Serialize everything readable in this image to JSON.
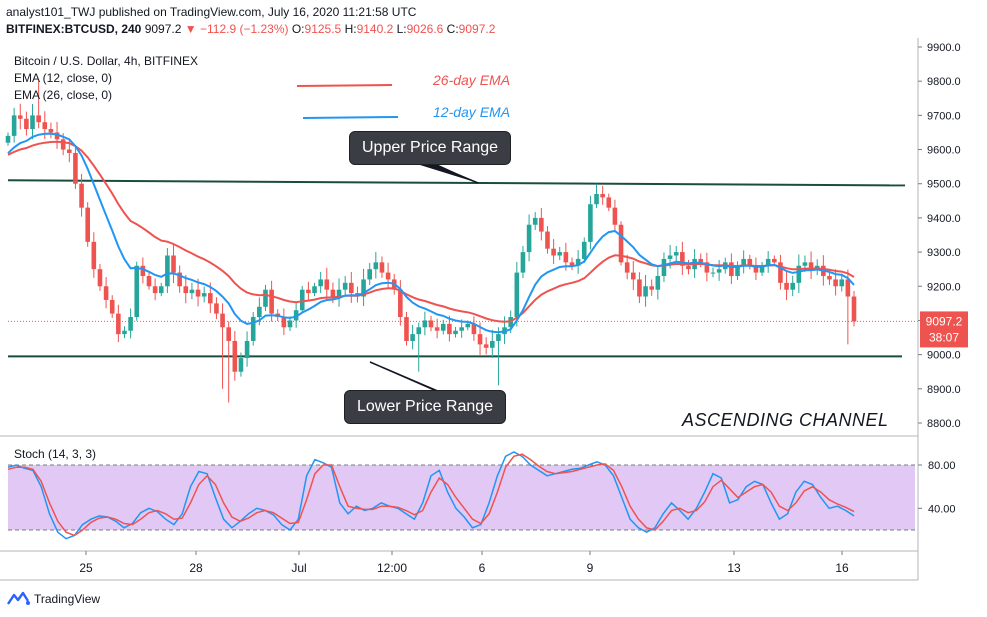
{
  "header": {
    "line1": "analyst101_TWJ published on TradingView.com, July 16, 2020 11:21:58 UTC",
    "symbol": "BITFINEX:BTCUSD, 240",
    "price": "9097.2",
    "change": "−112.9 (−1.23%)",
    "o_label": "O:",
    "o": "9125.5",
    "h_label": "H:",
    "h": "9140.2",
    "l_label": "L:",
    "l": "9026.6",
    "c_label": "C:",
    "c": "9097.2"
  },
  "legend": {
    "title": "Bitcoin / U.S. Dollar, 4h, BITFINEX",
    "ema12": "EMA (12, close, 0)",
    "ema26": "EMA (26, close, 0)",
    "stoch": "Stoch (14, 3, 3)"
  },
  "annotations": {
    "ema26_label": "26-day EMA",
    "ema12_label": "12-day EMA",
    "upper": "Upper Price Range",
    "lower": "Lower Price Range",
    "channel": "ASCENDING CHANNEL"
  },
  "price_badge": {
    "price": "9097.2",
    "timer": "38:07"
  },
  "brand": "TradingView",
  "colors": {
    "up": "#26a69a",
    "down": "#ef5350",
    "ema26": "#ef5350",
    "ema12": "#2196f3",
    "level": "#1b4d3e",
    "stoch_bg": "#e1c8f5",
    "stoch_k": "#2196f3",
    "stoch_d": "#ef5350"
  },
  "chart_data": [
    {
      "type": "candlestick",
      "title": "Bitcoin / U.S. Dollar, 4h, BITFINEX",
      "ylim": [
        8750,
        9920
      ],
      "y_ticks": [
        "9900.0",
        "9800.0",
        "9700.0",
        "9600.0",
        "9500.0",
        "9400.0",
        "9300.0",
        "9200.0",
        "9100.0",
        "9000.0",
        "8900.0",
        "8800.0"
      ],
      "x_ticks": [
        "25",
        "28",
        "Jul",
        "12:00",
        "6",
        "9",
        "13",
        "16"
      ],
      "grid": false,
      "levels": {
        "upper_start": 9510,
        "upper_end": 9495,
        "lower": 8995
      },
      "close": [
        9640,
        9700,
        9690,
        9660,
        9700,
        9680,
        9660,
        9650,
        9630,
        9600,
        9590,
        9500,
        9430,
        9330,
        9250,
        9200,
        9160,
        9120,
        9060,
        9070,
        9110,
        9260,
        9230,
        9200,
        9180,
        9200,
        9290,
        9240,
        9200,
        9180,
        9190,
        9170,
        9180,
        9150,
        9120,
        9080,
        9040,
        8950,
        8990,
        9040,
        9110,
        9140,
        9190,
        9120,
        9110,
        9080,
        9100,
        9130,
        9190,
        9180,
        9200,
        9220,
        9190,
        9170,
        9190,
        9210,
        9180,
        9170,
        9220,
        9250,
        9270,
        9240,
        9220,
        9190,
        9110,
        9040,
        9060,
        9080,
        9100,
        9080,
        9070,
        9090,
        9060,
        9070,
        9080,
        9090,
        9060,
        9030,
        9020,
        9040,
        9060,
        9080,
        9110,
        9240,
        9300,
        9380,
        9400,
        9360,
        9310,
        9290,
        9300,
        9270,
        9260,
        9280,
        9330,
        9440,
        9470,
        9460,
        9430,
        9380,
        9270,
        9240,
        9220,
        9170,
        9200,
        9190,
        9230,
        9280,
        9290,
        9300,
        9260,
        9250,
        9280,
        9270,
        9240,
        9240,
        9250,
        9270,
        9230,
        9260,
        9280,
        9260,
        9240,
        9260,
        9280,
        9270,
        9210,
        9190,
        9210,
        9260,
        9270,
        9250,
        9260,
        9230,
        9220,
        9200,
        9220,
        9170,
        9097.2
      ],
      "ema12_last": 9195,
      "ema26_last": 9225
    },
    {
      "type": "line",
      "title": "Stoch (14, 3, 3)",
      "ylim": [
        0,
        100
      ],
      "y_ticks": [
        "80.00",
        "40.00"
      ],
      "bands": [
        20,
        80
      ],
      "series": [
        {
          "name": "%K",
          "values": [
            78,
            80,
            77,
            75,
            60,
            35,
            18,
            12,
            15,
            25,
            30,
            33,
            32,
            28,
            22,
            26,
            36,
            40,
            37,
            30,
            25,
            35,
            60,
            74,
            72,
            50,
            30,
            22,
            28,
            35,
            40,
            38,
            34,
            25,
            20,
            30,
            70,
            85,
            82,
            78,
            45,
            35,
            42,
            38,
            40,
            45,
            42,
            40,
            35,
            30,
            45,
            70,
            75,
            55,
            40,
            32,
            22,
            25,
            45,
            70,
            88,
            92,
            88,
            80,
            75,
            70,
            72,
            74,
            76,
            77,
            80,
            83,
            80,
            70,
            50,
            30,
            22,
            18,
            22,
            35,
            45,
            38,
            30,
            40,
            55,
            72,
            68,
            45,
            48,
            60,
            65,
            62,
            45,
            30,
            35,
            55,
            65,
            62,
            50,
            40,
            42,
            38,
            33
          ]
        },
        {
          "name": "%D",
          "values": [
            76,
            78,
            78,
            76,
            65,
            45,
            28,
            18,
            15,
            20,
            27,
            31,
            32,
            30,
            26,
            25,
            30,
            36,
            38,
            35,
            30,
            31,
            45,
            62,
            70,
            62,
            45,
            32,
            28,
            31,
            36,
            38,
            36,
            31,
            26,
            27,
            48,
            72,
            80,
            80,
            60,
            42,
            40,
            39,
            39,
            42,
            42,
            41,
            38,
            34,
            38,
            55,
            68,
            62,
            50,
            40,
            30,
            26,
            35,
            55,
            78,
            88,
            90,
            85,
            79,
            74,
            72,
            73,
            74,
            76,
            78,
            80,
            81,
            75,
            60,
            42,
            30,
            22,
            20,
            28,
            38,
            40,
            36,
            38,
            46,
            60,
            66,
            58,
            50,
            55,
            60,
            62,
            55,
            42,
            38,
            45,
            56,
            60,
            55,
            48,
            44,
            41,
            37
          ]
        }
      ]
    }
  ]
}
